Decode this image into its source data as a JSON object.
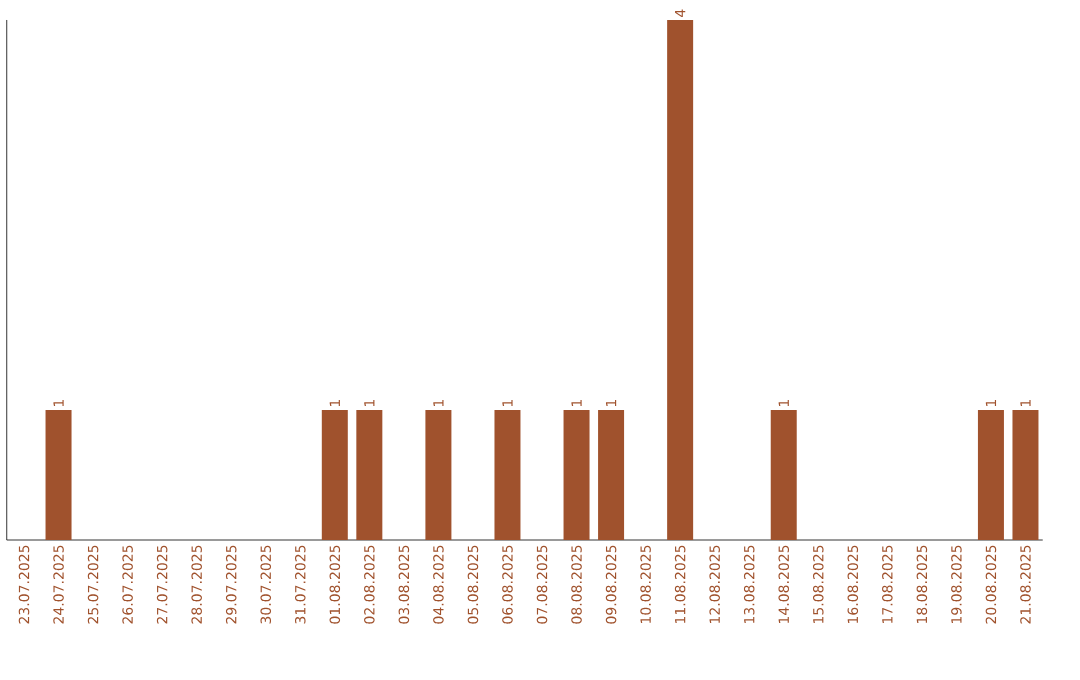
{
  "chart_data": {
    "type": "bar",
    "color": "#a0522d",
    "categories": [
      "23.07.2025",
      "24.07.2025",
      "25.07.2025",
      "26.07.2025",
      "27.07.2025",
      "28.07.2025",
      "29.07.2025",
      "30.07.2025",
      "31.07.2025",
      "01.08.2025",
      "02.08.2025",
      "03.08.2025",
      "04.08.2025",
      "05.08.2025",
      "06.08.2025",
      "07.08.2025",
      "08.08.2025",
      "09.08.2025",
      "10.08.2025",
      "11.08.2025",
      "12.08.2025",
      "13.08.2025",
      "14.08.2025",
      "15.08.2025",
      "16.08.2025",
      "17.08.2025",
      "18.08.2025",
      "19.08.2025",
      "20.08.2025",
      "21.08.2025"
    ],
    "values": [
      0,
      1,
      0,
      0,
      0,
      0,
      0,
      0,
      0,
      1,
      1,
      0,
      1,
      0,
      1,
      0,
      1,
      1,
      0,
      4,
      0,
      0,
      1,
      0,
      0,
      0,
      0,
      0,
      1,
      1
    ],
    "value_labels": [
      null,
      "1",
      null,
      null,
      null,
      null,
      null,
      null,
      null,
      "1",
      "1",
      null,
      "1",
      null,
      "1",
      null,
      "1",
      "1",
      null,
      "4",
      null,
      null,
      "1",
      null,
      null,
      null,
      null,
      null,
      "1",
      "1"
    ]
  }
}
